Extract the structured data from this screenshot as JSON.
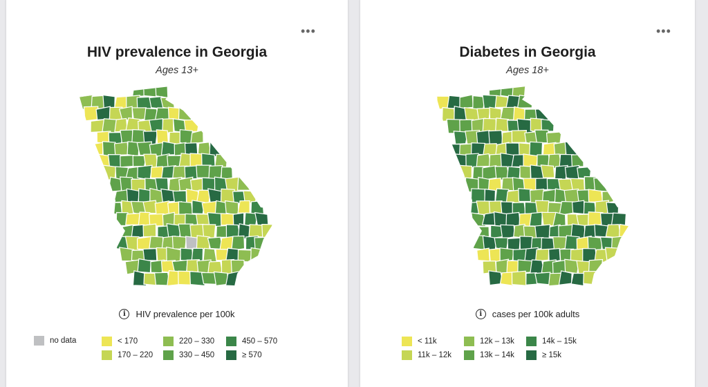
{
  "palette": {
    "no_data": "#bfc0c2",
    "c1": "#ede555",
    "c2": "#c5d654",
    "c3": "#8ebd52",
    "c4": "#5fa24a",
    "c5": "#3b8649",
    "c6": "#276a43"
  },
  "cards": [
    {
      "more_icon": "more-horizontal-icon",
      "more_label": "•••",
      "title": "HIV prevalence in Georgia",
      "subtitle": "Ages 13+",
      "metric_label": "HIV prevalence per 100k",
      "info_icon_glyph": "i",
      "legend": {
        "no_data_label": "no data",
        "bins": [
          "< 170",
          "170 – 220",
          "220 – 330",
          "330 – 450",
          "450 – 570",
          "≥ 570"
        ]
      }
    },
    {
      "more_icon": "more-horizontal-icon",
      "more_label": "•••",
      "title": "Diabetes in Georgia",
      "subtitle": "Ages 18+",
      "metric_label": "cases per 100k adults",
      "info_icon_glyph": "i",
      "legend": {
        "bins": [
          "< 11k",
          "11k – 12k",
          "12k – 13k",
          "13k – 14k",
          "14k – 15k",
          "≥ 15k"
        ]
      }
    }
  ]
}
